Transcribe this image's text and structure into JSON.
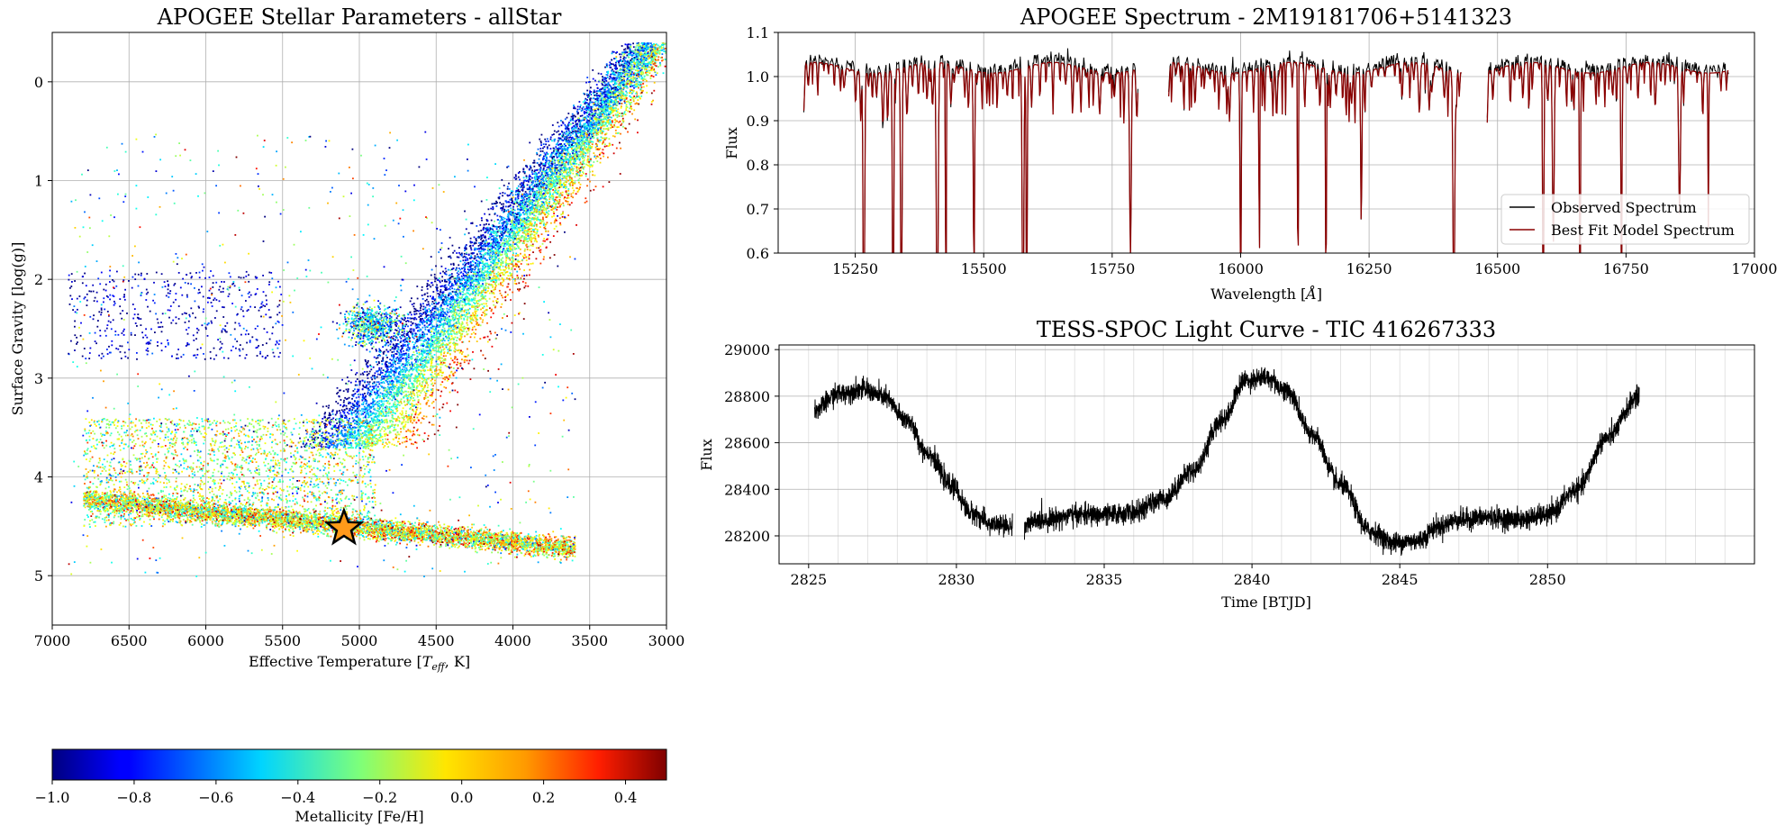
{
  "chart_data": [
    {
      "type": "scatter",
      "title": "APOGEE Stellar Parameters - allStar",
      "xlabel": "Effective Temperature [T_eff, K]",
      "xlabel_main": "Effective Temperature [",
      "xlabel_var": "T",
      "xlabel_sub": "eff",
      "xlabel_end": ", K]",
      "ylabel": "Surface Gravity [log(g)]",
      "xlim": [
        7000,
        3000
      ],
      "ylim": [
        5.5,
        -0.5
      ],
      "y_inverted": true,
      "x_inverted": true,
      "grid": true,
      "x_ticks": [
        7000,
        6500,
        6000,
        5500,
        5000,
        4500,
        4000,
        3500,
        3000
      ],
      "y_ticks": [
        0,
        1,
        2,
        3,
        4,
        5
      ],
      "colormap": "jet",
      "colorbar": {
        "label": "Metallicity [Fe/H]",
        "range": [
          -1.0,
          0.5
        ],
        "ticks": [
          "−1.0",
          "−0.8",
          "−0.6",
          "−0.4",
          "−0.2",
          "0.0",
          "0.2",
          "0.4"
        ],
        "tick_values": [
          -1.0,
          -0.8,
          -0.6,
          -0.4,
          -0.2,
          0.0,
          0.2,
          0.4
        ]
      },
      "highlight": {
        "marker": "star",
        "color": "#ff9a1a",
        "teff": 5100,
        "logg": 4.52
      },
      "populations": [
        {
          "region": "main-sequence",
          "teff_range": [
            3600,
            6800
          ],
          "logg_range": [
            4.3,
            4.75
          ]
        },
        {
          "region": "subgiant",
          "teff_range": [
            4800,
            6800
          ],
          "logg_range": [
            3.4,
            4.5
          ]
        },
        {
          "region": "red-giant-branch",
          "teff_range": [
            3100,
            5100
          ],
          "logg_range": [
            -0.4,
            3.8
          ]
        },
        {
          "region": "red-clump",
          "teff_range": [
            4700,
            5100
          ],
          "logg_range": [
            2.3,
            2.6
          ]
        },
        {
          "region": "metal-poor-hb",
          "teff_range": [
            5500,
            6900
          ],
          "logg_range": [
            1.9,
            2.8
          ]
        }
      ]
    },
    {
      "type": "line",
      "title": "APOGEE Spectrum - 2M19181706+5141323",
      "xlabel": "Wavelength [Å]",
      "xlabel_main": "Wavelength [",
      "xlabel_var": "Å",
      "xlabel_end": "]",
      "ylabel": "Flux",
      "xlim": [
        15100,
        17000
      ],
      "ylim": [
        0.6,
        1.1
      ],
      "grid": true,
      "x_ticks": [
        15250,
        15500,
        15750,
        16000,
        16250,
        16500,
        16750,
        17000
      ],
      "y_ticks": [
        "0.6",
        "0.7",
        "0.8",
        "0.9",
        "1.0",
        "1.1"
      ],
      "y_tick_values": [
        0.6,
        0.7,
        0.8,
        0.9,
        1.0,
        1.1
      ],
      "chip_ranges": [
        [
          15150,
          15800
        ],
        [
          15860,
          16430
        ],
        [
          16480,
          16950
        ]
      ],
      "series": [
        {
          "name": "Observed Spectrum",
          "color": "#000000"
        },
        {
          "name": "Best Fit Model Spectrum",
          "color": "#8b0000"
        }
      ],
      "legend": "lower-right"
    },
    {
      "type": "line",
      "title": "TESS-SPOC Light Curve - TIC 416267333",
      "xlabel": "Time [BTJD]",
      "ylabel": "Flux",
      "xlim": [
        2824,
        2857
      ],
      "ylim": [
        28080,
        29020
      ],
      "grid": true,
      "x_ticks": [
        2825,
        2830,
        2835,
        2840,
        2845,
        2850
      ],
      "y_ticks": [
        28200,
        28400,
        28600,
        28800,
        29000
      ],
      "data_range": [
        2825.2,
        2853.1
      ],
      "gap": [
        2831.9,
        2832.3
      ],
      "series": [
        {
          "color": "#000000",
          "x": [
            2825.2,
            2826.0,
            2826.8,
            2827.5,
            2828.3,
            2829.0,
            2829.8,
            2830.5,
            2831.2,
            2831.9,
            2832.3,
            2833.0,
            2834.0,
            2835.0,
            2836.0,
            2837.0,
            2838.0,
            2839.0,
            2839.8,
            2840.5,
            2841.2,
            2842.0,
            2843.0,
            2844.0,
            2844.8,
            2845.6,
            2846.3,
            2847.0,
            2848.0,
            2849.0,
            2850.0,
            2851.0,
            2852.0,
            2853.1
          ],
          "values": [
            28740,
            28810,
            28830,
            28800,
            28700,
            28560,
            28420,
            28300,
            28250,
            28240,
            28250,
            28270,
            28290,
            28290,
            28300,
            28360,
            28480,
            28700,
            28870,
            28880,
            28820,
            28640,
            28420,
            28220,
            28170,
            28180,
            28240,
            28270,
            28280,
            28270,
            28290,
            28400,
            28620,
            28800
          ]
        }
      ]
    }
  ]
}
